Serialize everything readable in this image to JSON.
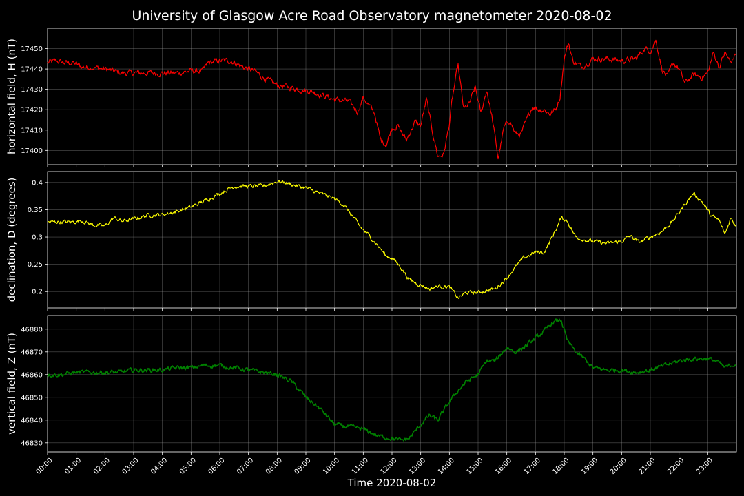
{
  "chart_data": {
    "type": "line",
    "title": "University of Glasgow Acre Road Observatory magnetometer 2020-08-02",
    "xlabel": "Time 2020-08-02",
    "x_ticks": [
      "00:00",
      "01:00",
      "02:00",
      "03:00",
      "04:00",
      "05:00",
      "06:00",
      "07:00",
      "08:00",
      "09:00",
      "10:00",
      "11:00",
      "12:00",
      "13:00",
      "14:00",
      "15:00",
      "16:00",
      "17:00",
      "18:00",
      "19:00",
      "20:00",
      "21:00",
      "22:00",
      "23:00"
    ],
    "xlim": [
      0,
      24
    ],
    "grid": true,
    "panels": [
      {
        "ylabel": "horizontal field, H (nT)",
        "color": "#ff0000",
        "ylim": [
          17393,
          17460
        ],
        "y_ticks": [
          17400,
          17410,
          17420,
          17430,
          17440,
          17450
        ],
        "noise": 1.2,
        "x": [
          0,
          0.3,
          0.6,
          0.9,
          1.2,
          1.5,
          2.0,
          2.3,
          2.6,
          3.0,
          3.5,
          4.0,
          4.5,
          5.0,
          5.4,
          5.6,
          6.0,
          6.4,
          6.8,
          7.2,
          7.6,
          8.0,
          8.4,
          8.8,
          9.2,
          9.6,
          10.0,
          10.5,
          10.8,
          11.0,
          11.2,
          11.4,
          11.6,
          11.8,
          12.0,
          12.2,
          12.5,
          12.8,
          13.0,
          13.2,
          13.4,
          13.6,
          13.8,
          14.0,
          14.1,
          14.3,
          14.5,
          14.7,
          14.9,
          15.1,
          15.3,
          15.5,
          15.7,
          15.9,
          16.1,
          16.3,
          16.5,
          16.7,
          16.9,
          17.1,
          17.3,
          17.5,
          17.7,
          17.85,
          18.0,
          18.15,
          18.3,
          18.6,
          19.0,
          19.5,
          20.0,
          20.5,
          20.8,
          21.0,
          21.2,
          21.4,
          21.6,
          21.8,
          22.0,
          22.2,
          22.5,
          22.8,
          23.0,
          23.2,
          23.4,
          23.6,
          23.8,
          24.0
        ],
        "y": [
          17443,
          17444,
          17443,
          17443,
          17441,
          17441,
          17440,
          17439,
          17438,
          17438,
          17438,
          17438,
          17438,
          17439,
          17439,
          17443,
          17444,
          17444,
          17441,
          17439,
          17435,
          17432,
          17431,
          17430,
          17429,
          17427,
          17425,
          17424,
          17419,
          17426,
          17422,
          17418,
          17405,
          17403,
          17411,
          17412,
          17405,
          17414,
          17412,
          17425,
          17410,
          17397,
          17398,
          17413,
          17425,
          17442,
          17420,
          17423,
          17431,
          17418,
          17430,
          17415,
          17396,
          17411,
          17415,
          17408,
          17408,
          17415,
          17422,
          17420,
          17420,
          17418,
          17420,
          17426,
          17445,
          17453,
          17444,
          17441,
          17445,
          17445,
          17444,
          17445,
          17450,
          17449,
          17454,
          17440,
          17436,
          17443,
          17440,
          17433,
          17437,
          17436,
          17438,
          17448,
          17441,
          17448,
          17443,
          17448
        ]
      },
      {
        "ylabel": "declination, D (degrees)",
        "color": "#ffff00",
        "ylim": [
          0.17,
          0.42
        ],
        "y_ticks": [
          0.2,
          0.25,
          0.3,
          0.35,
          0.4
        ],
        "noise": 0.003,
        "x": [
          0,
          0.4,
          0.8,
          1.2,
          1.6,
          2.0,
          2.3,
          2.6,
          3.0,
          3.5,
          4.0,
          4.5,
          5.0,
          5.5,
          6.0,
          6.5,
          7.0,
          7.5,
          8.0,
          8.3,
          8.6,
          9.0,
          9.5,
          10.0,
          10.3,
          10.6,
          10.9,
          11.2,
          11.5,
          11.8,
          12.0,
          12.3,
          12.6,
          13.0,
          13.3,
          13.6,
          14.0,
          14.3,
          14.6,
          15.0,
          15.3,
          15.6,
          16.0,
          16.3,
          16.6,
          17.0,
          17.3,
          17.6,
          17.9,
          18.1,
          18.4,
          18.7,
          19.0,
          19.5,
          20.0,
          20.3,
          20.6,
          21.0,
          21.4,
          21.8,
          22.0,
          22.2,
          22.5,
          22.8,
          23.1,
          23.4,
          23.6,
          23.8,
          24.0
        ],
        "y": [
          0.327,
          0.328,
          0.327,
          0.33,
          0.322,
          0.32,
          0.335,
          0.329,
          0.333,
          0.34,
          0.341,
          0.347,
          0.355,
          0.367,
          0.38,
          0.393,
          0.393,
          0.393,
          0.402,
          0.4,
          0.395,
          0.39,
          0.38,
          0.37,
          0.36,
          0.34,
          0.318,
          0.303,
          0.285,
          0.265,
          0.262,
          0.245,
          0.222,
          0.212,
          0.205,
          0.21,
          0.209,
          0.188,
          0.198,
          0.198,
          0.202,
          0.205,
          0.225,
          0.245,
          0.262,
          0.272,
          0.272,
          0.302,
          0.335,
          0.33,
          0.3,
          0.295,
          0.292,
          0.288,
          0.292,
          0.302,
          0.29,
          0.3,
          0.31,
          0.33,
          0.345,
          0.36,
          0.38,
          0.365,
          0.34,
          0.33,
          0.305,
          0.335,
          0.32
        ]
      },
      {
        "ylabel": "vertical field, Z (nT)",
        "color": "#008000",
        "ylim": [
          46826,
          46886
        ],
        "y_ticks": [
          46830,
          46840,
          46850,
          46860,
          46870,
          46880
        ],
        "noise": 0.8,
        "x": [
          0,
          0.5,
          1.0,
          1.5,
          2.0,
          2.5,
          3.0,
          3.5,
          4.0,
          4.5,
          5.0,
          5.5,
          6.0,
          6.5,
          7.0,
          7.5,
          8.0,
          8.5,
          9.0,
          9.5,
          10.0,
          10.5,
          11.0,
          11.5,
          12.0,
          12.3,
          12.6,
          13.0,
          13.3,
          13.6,
          14.0,
          14.3,
          14.6,
          15.0,
          15.3,
          15.6,
          16.0,
          16.3,
          16.6,
          17.0,
          17.3,
          17.6,
          17.9,
          18.1,
          18.4,
          18.7,
          19.0,
          19.5,
          20.0,
          20.5,
          21.0,
          21.5,
          22.0,
          22.5,
          23.0,
          23.3,
          23.6,
          24.0
        ],
        "y": [
          46860,
          46860,
          46861,
          46861,
          46861,
          46861,
          46862,
          46862,
          46862,
          46863,
          46863,
          46864,
          46864,
          46863,
          46862,
          46861,
          46860,
          46857,
          46850,
          46845,
          46838,
          46837,
          46836,
          46833,
          46832,
          46831,
          46832,
          46838,
          46842,
          46840,
          46848,
          46853,
          46857,
          46860,
          46866,
          46866,
          46872,
          46870,
          46872,
          46876,
          46879,
          46883,
          46884,
          46875,
          46870,
          46867,
          46863,
          46862,
          46862,
          46861,
          46862,
          46864,
          46866,
          46867,
          46867,
          46866,
          46863,
          46865
        ]
      }
    ]
  }
}
